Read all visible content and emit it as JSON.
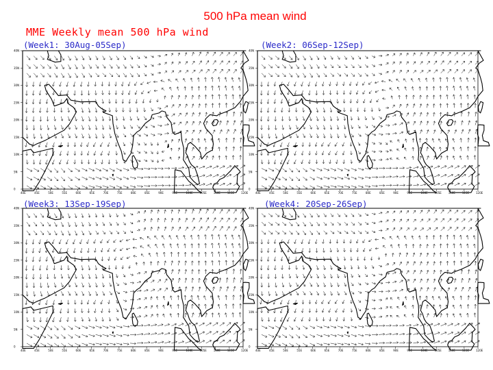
{
  "slide_title": "500 hPa mean wind",
  "figure_title": "MME Weekly mean 500 hPa wind",
  "colors": {
    "title": "#ff0000",
    "panel_label": "#2a2ac8",
    "coast": "#000000",
    "arrows": "#000000"
  },
  "panels": [
    {
      "label": "(Week1: 30Aug-05Sep)",
      "flow": "week1"
    },
    {
      "label": "(Week2: 06Sep-12Sep)",
      "flow": "week2"
    },
    {
      "label": "(Week3: 13Sep-19Sep)",
      "flow": "week3"
    },
    {
      "label": "(Week4: 20Sep-26Sep)",
      "flow": "week4"
    }
  ],
  "map_axes": {
    "lat_ticks": [
      "0",
      "5N",
      "10N",
      "15N",
      "20N",
      "25N",
      "30N",
      "35N",
      "40N"
    ],
    "lon_ticks": [
      "40E",
      "45E",
      "50E",
      "55E",
      "60E",
      "65E",
      "70E",
      "75E",
      "80E",
      "85E",
      "90E",
      "95E",
      "100E",
      "105E",
      "110E",
      "115E",
      "120E"
    ]
  }
}
